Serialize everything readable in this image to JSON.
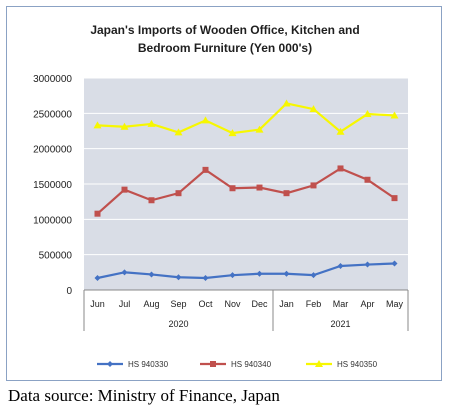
{
  "chart_data": {
    "type": "line",
    "title_line1": "Japan's Imports of  Wooden  Office, Kitchen and",
    "title_line2": "Bedroom Furniture (Yen 000's)",
    "categories": [
      "Jun",
      "Jul",
      "Aug",
      "Sep",
      "Oct",
      "Nov",
      "Dec",
      "Jan",
      "Feb",
      "Mar",
      "Apr",
      "May"
    ],
    "category_groups": [
      {
        "label": "2020",
        "count": 7
      },
      {
        "label": "2021",
        "count": 5
      }
    ],
    "ylim": [
      0,
      3000000
    ],
    "yticks": [
      0,
      500000,
      1000000,
      1500000,
      2000000,
      2500000,
      3000000
    ],
    "ytick_labels": [
      "0",
      "500000",
      "1000000",
      "1500000",
      "2000000",
      "2500000",
      "3000000"
    ],
    "grid": true,
    "legend_position": "bottom",
    "background": "#d9dde6",
    "series": [
      {
        "name": "HS 940330",
        "color": "#4472c4",
        "marker": "diamond",
        "values": [
          170000,
          250000,
          220000,
          180000,
          170000,
          210000,
          230000,
          230000,
          210000,
          340000,
          360000,
          375000
        ]
      },
      {
        "name": "HS 940340",
        "color": "#c0504d",
        "marker": "square",
        "values": [
          1080000,
          1420000,
          1270000,
          1370000,
          1700000,
          1440000,
          1450000,
          1370000,
          1480000,
          1720000,
          1560000,
          1300000
        ]
      },
      {
        "name": "HS 940350",
        "color": "#f7f700",
        "marker": "triangle",
        "values": [
          2330000,
          2310000,
          2350000,
          2230000,
          2400000,
          2220000,
          2270000,
          2640000,
          2560000,
          2240000,
          2490000,
          2470000
        ]
      }
    ]
  },
  "source_text": "Data source: Ministry of Finance, Japan"
}
